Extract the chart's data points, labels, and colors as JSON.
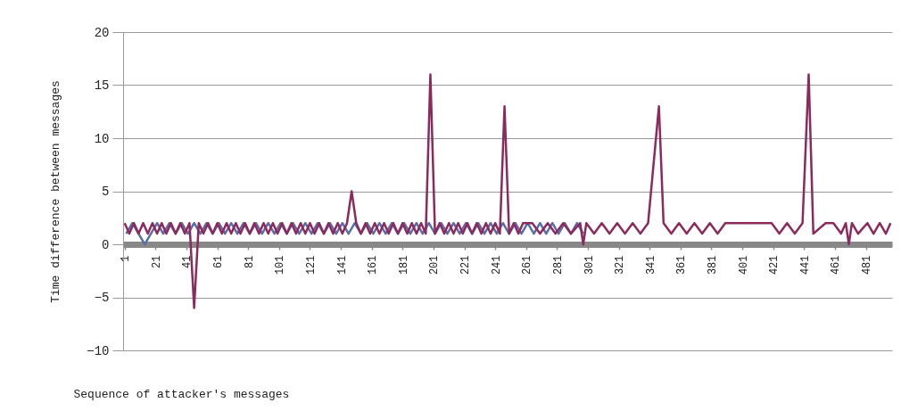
{
  "chart_data": {
    "type": "line",
    "xlabel": "Sequence of attacker's messages",
    "ylabel": "Time difference between messages",
    "xlim": [
      0,
      498
    ],
    "xticks": [
      1,
      21,
      41,
      61,
      81,
      101,
      121,
      141,
      161,
      181,
      201,
      221,
      241,
      261,
      281,
      301,
      321,
      341,
      361,
      381,
      401,
      421,
      441,
      461,
      481
    ],
    "ylim": [
      -10,
      20
    ],
    "yticks": [
      -10,
      -5,
      0,
      5,
      10,
      15,
      20
    ],
    "grid": "y",
    "series": [
      {
        "color": "#5a6fa8",
        "x": [
          2,
          6,
          10,
          14,
          18,
          22,
          26,
          30,
          34,
          38,
          42,
          46,
          50,
          54,
          58,
          62,
          66,
          70,
          74,
          78,
          82,
          86,
          90,
          94,
          98,
          102,
          106,
          110,
          114,
          118,
          122,
          126,
          130,
          134,
          138,
          142,
          146,
          150,
          154,
          158,
          162,
          166,
          170,
          174,
          178,
          182,
          186,
          190,
          194,
          198,
          202,
          206,
          210,
          214,
          218,
          222,
          226,
          230,
          234,
          238,
          242,
          246,
          250,
          254,
          258,
          262,
          266,
          270,
          274,
          278,
          282,
          286,
          290,
          294,
          298
        ],
        "values": [
          1,
          2,
          1,
          0,
          1,
          2,
          1,
          2,
          1,
          2,
          1,
          2,
          1,
          2,
          1,
          2,
          1,
          2,
          1,
          2,
          1,
          2,
          1,
          2,
          1,
          2,
          1,
          2,
          1,
          2,
          1,
          2,
          1,
          2,
          1,
          2,
          1,
          2,
          1,
          2,
          1,
          2,
          1,
          2,
          1,
          2,
          1,
          2,
          1,
          2,
          1,
          2,
          1,
          2,
          1,
          2,
          1,
          2,
          1,
          2,
          1,
          2,
          1,
          2,
          1,
          2,
          1,
          2,
          1,
          2,
          1,
          2,
          1,
          2,
          1
        ]
      },
      {
        "color": "#8b2a5c",
        "x": [
          1,
          4,
          7,
          10,
          13,
          16,
          19,
          22,
          25,
          28,
          31,
          34,
          37,
          40,
          43,
          46,
          49,
          52,
          55,
          58,
          61,
          64,
          67,
          70,
          73,
          76,
          79,
          82,
          85,
          88,
          91,
          94,
          97,
          100,
          103,
          106,
          109,
          112,
          115,
          118,
          121,
          124,
          127,
          130,
          133,
          136,
          139,
          142,
          145,
          148,
          151,
          154,
          157,
          160,
          163,
          166,
          169,
          172,
          175,
          178,
          181,
          184,
          187,
          190,
          193,
          196,
          199,
          202,
          205,
          208,
          211,
          214,
          217,
          220,
          223,
          226,
          229,
          232,
          235,
          238,
          241,
          244,
          247,
          250,
          253,
          256,
          259,
          265,
          270,
          275,
          280,
          285,
          290,
          296,
          298,
          300,
          305,
          310,
          315,
          320,
          325,
          330,
          335,
          340,
          347,
          350,
          355,
          360,
          365,
          370,
          375,
          380,
          385,
          390,
          420,
          425,
          430,
          435,
          440,
          444,
          447,
          455,
          460,
          465,
          468,
          470,
          472,
          476,
          482,
          486,
          490,
          494,
          497
        ],
        "values": [
          2,
          1,
          2,
          1,
          2,
          1,
          2,
          1,
          2,
          1,
          2,
          1,
          2,
          1,
          2,
          -6,
          2,
          1,
          2,
          1,
          2,
          1,
          2,
          1,
          2,
          1,
          2,
          1,
          2,
          1,
          2,
          1,
          2,
          1,
          2,
          1,
          2,
          1,
          2,
          1,
          2,
          1,
          2,
          1,
          2,
          1,
          2,
          1,
          2,
          5,
          2,
          1,
          2,
          1,
          2,
          1,
          2,
          1,
          2,
          1,
          2,
          1,
          2,
          1,
          2,
          1,
          16,
          1,
          2,
          1,
          2,
          1,
          2,
          1,
          2,
          1,
          2,
          1,
          2,
          1,
          2,
          1,
          13,
          1,
          2,
          1,
          2,
          2,
          1,
          2,
          1,
          2,
          1,
          2,
          0,
          2,
          1,
          2,
          1,
          2,
          1,
          2,
          1,
          2,
          13,
          2,
          1,
          2,
          1,
          2,
          1,
          2,
          1,
          2,
          2,
          1,
          2,
          1,
          2,
          16,
          1,
          2,
          2,
          1,
          2,
          0,
          2,
          1,
          2,
          1,
          2,
          1,
          2
        ]
      }
    ]
  }
}
